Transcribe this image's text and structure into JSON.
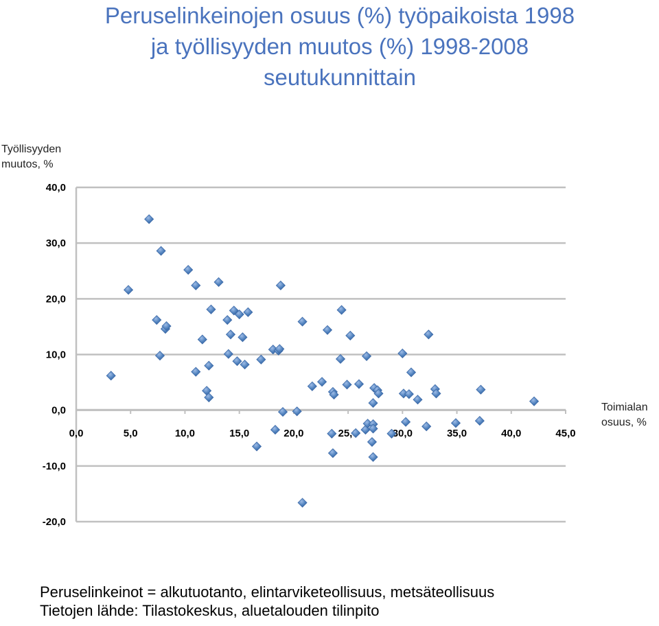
{
  "title_lines": [
    "Peruselinkeinojen osuus (%) työpaikoista 1998",
    "ja työllisyyden muutos (%) 1998-2008",
    "seutukunnittain"
  ],
  "footnotes": [
    "Peruselinkeinot = alkutuotanto, elintarviketeollisuus, metsäteollisuus",
    "Tietojen lähde: Tilastokeskus, aluetalouden tilinpito"
  ],
  "colors": {
    "title": "#4a73bd",
    "marker": "#4f81bd",
    "grid": "#c0c0c0"
  },
  "chart_data": {
    "type": "scatter",
    "ylabel_lines": [
      "Työllisyyden",
      "muutos, %"
    ],
    "xlabel_lines": [
      "Toimialan",
      "osuus, %"
    ],
    "xlim": [
      0,
      45
    ],
    "ylim": [
      -20,
      40
    ],
    "x_ticks": [
      "0,0",
      "5,0",
      "10,0",
      "15,0",
      "20,0",
      "25,0",
      "30,0",
      "35,0",
      "40,0",
      "45,0"
    ],
    "y_ticks": [
      "40,0",
      "30,0",
      "20,0",
      "10,0",
      "0,0",
      "-10,0",
      "-20,0"
    ],
    "grid": "horizontal",
    "marker": "diamond",
    "points": [
      [
        3.2,
        6.2
      ],
      [
        4.8,
        21.6
      ],
      [
        6.7,
        34.3
      ],
      [
        7.4,
        16.2
      ],
      [
        7.7,
        9.8
      ],
      [
        7.8,
        28.6
      ],
      [
        8.2,
        14.6
      ],
      [
        8.3,
        15.1
      ],
      [
        10.3,
        25.2
      ],
      [
        11.0,
        6.9
      ],
      [
        11.0,
        22.4
      ],
      [
        11.6,
        12.7
      ],
      [
        12.0,
        3.5
      ],
      [
        12.2,
        2.3
      ],
      [
        12.2,
        8.0
      ],
      [
        12.4,
        18.1
      ],
      [
        13.1,
        23.0
      ],
      [
        13.9,
        16.2
      ],
      [
        14.0,
        10.1
      ],
      [
        14.2,
        13.6
      ],
      [
        14.5,
        17.9
      ],
      [
        14.8,
        8.8
      ],
      [
        15.0,
        17.2
      ],
      [
        15.3,
        13.1
      ],
      [
        15.5,
        8.2
      ],
      [
        15.8,
        17.6
      ],
      [
        16.6,
        -6.5
      ],
      [
        17.0,
        9.1
      ],
      [
        18.1,
        10.9
      ],
      [
        18.3,
        -3.5
      ],
      [
        18.6,
        10.7
      ],
      [
        18.7,
        11.0
      ],
      [
        18.8,
        22.4
      ],
      [
        19.0,
        -0.3
      ],
      [
        20.3,
        -0.2
      ],
      [
        20.8,
        15.9
      ],
      [
        20.8,
        -16.6
      ],
      [
        21.7,
        4.3
      ],
      [
        22.6,
        5.1
      ],
      [
        23.1,
        14.4
      ],
      [
        23.5,
        -4.2
      ],
      [
        23.6,
        -7.7
      ],
      [
        23.6,
        3.3
      ],
      [
        23.7,
        2.8
      ],
      [
        24.3,
        9.2
      ],
      [
        24.4,
        18.0
      ],
      [
        24.9,
        4.6
      ],
      [
        25.2,
        13.4
      ],
      [
        25.7,
        -4.1
      ],
      [
        26.0,
        4.7
      ],
      [
        26.6,
        -3.5
      ],
      [
        26.7,
        9.7
      ],
      [
        26.8,
        -2.4
      ],
      [
        27.2,
        -5.7
      ],
      [
        27.3,
        -8.4
      ],
      [
        27.3,
        -2.5
      ],
      [
        27.3,
        -3.3
      ],
      [
        27.3,
        1.3
      ],
      [
        27.4,
        4.0
      ],
      [
        27.7,
        3.6
      ],
      [
        27.8,
        3.0
      ],
      [
        29.0,
        -4.2
      ],
      [
        30.0,
        10.2
      ],
      [
        30.1,
        3.0
      ],
      [
        30.3,
        -2.1
      ],
      [
        30.6,
        2.9
      ],
      [
        30.8,
        6.8
      ],
      [
        31.4,
        1.9
      ],
      [
        32.2,
        -2.9
      ],
      [
        32.4,
        13.6
      ],
      [
        33.0,
        3.8
      ],
      [
        33.1,
        3.0
      ],
      [
        34.9,
        -2.3
      ],
      [
        37.1,
        -1.9
      ],
      [
        37.2,
        3.7
      ],
      [
        42.1,
        1.6
      ]
    ]
  }
}
